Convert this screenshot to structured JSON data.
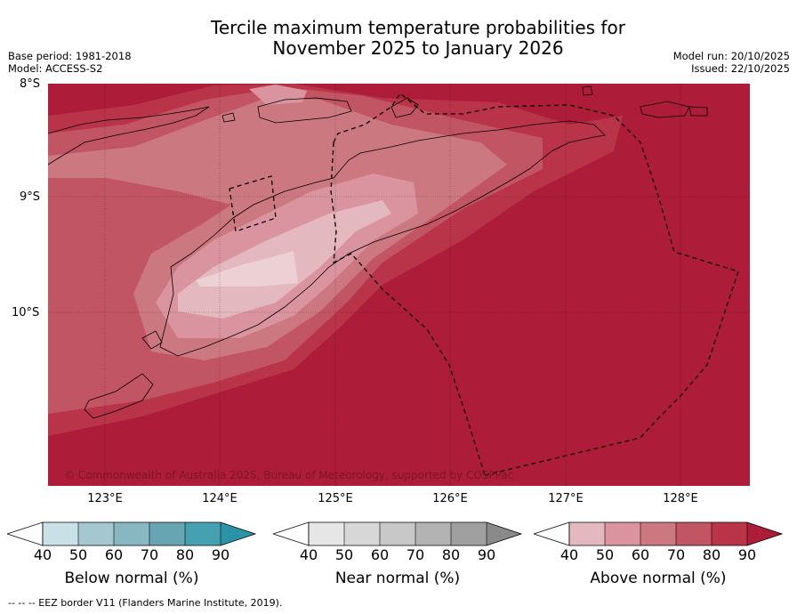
{
  "title_line1": "Tercile maximum temperature probabilities for",
  "title_line2": "November 2025 to January 2026",
  "base_period": "Base period: 1981-2018",
  "model": "Model: ACCESS-S2",
  "model_run": "Model run: 20/10/2025",
  "issued": "Issued: 22/10/2025",
  "lat_labels": [
    "8°S",
    "9°S",
    "10°S"
  ],
  "lon_labels": [
    "123°E",
    "124°E",
    "125°E",
    "126°E",
    "127°E",
    "128°E"
  ],
  "copyright": "© Commonwealth of Australia 2025, Bureau of Meteorology, supported by COSPPac",
  "colorbars": [
    {
      "label": "Below normal (%)",
      "ticks": [
        "40",
        "50",
        "60",
        "70",
        "80",
        "90"
      ],
      "colors": [
        "#c9e0e6",
        "#a5c7cf",
        "#88b6c1",
        "#68a5b3",
        "#45a0b0",
        "#2a93a8"
      ]
    },
    {
      "label": "Near normal (%)",
      "ticks": [
        "40",
        "50",
        "60",
        "70",
        "80",
        "90"
      ],
      "colors": [
        "#e6e6e6",
        "#d7d7d7",
        "#c8c8c8",
        "#b3b3b3",
        "#a0a0a0",
        "#8a8a8a"
      ]
    },
    {
      "label": "Above normal (%)",
      "ticks": [
        "40",
        "50",
        "60",
        "70",
        "80",
        "90"
      ],
      "colors": [
        "#e3b8bf",
        "#d9949f",
        "#cc7881",
        "#c25563",
        "#b93349",
        "#ad1c38"
      ]
    }
  ],
  "footer": "--  --  -- EEZ border V11 (Flanders Marine Institute, 2019)."
}
